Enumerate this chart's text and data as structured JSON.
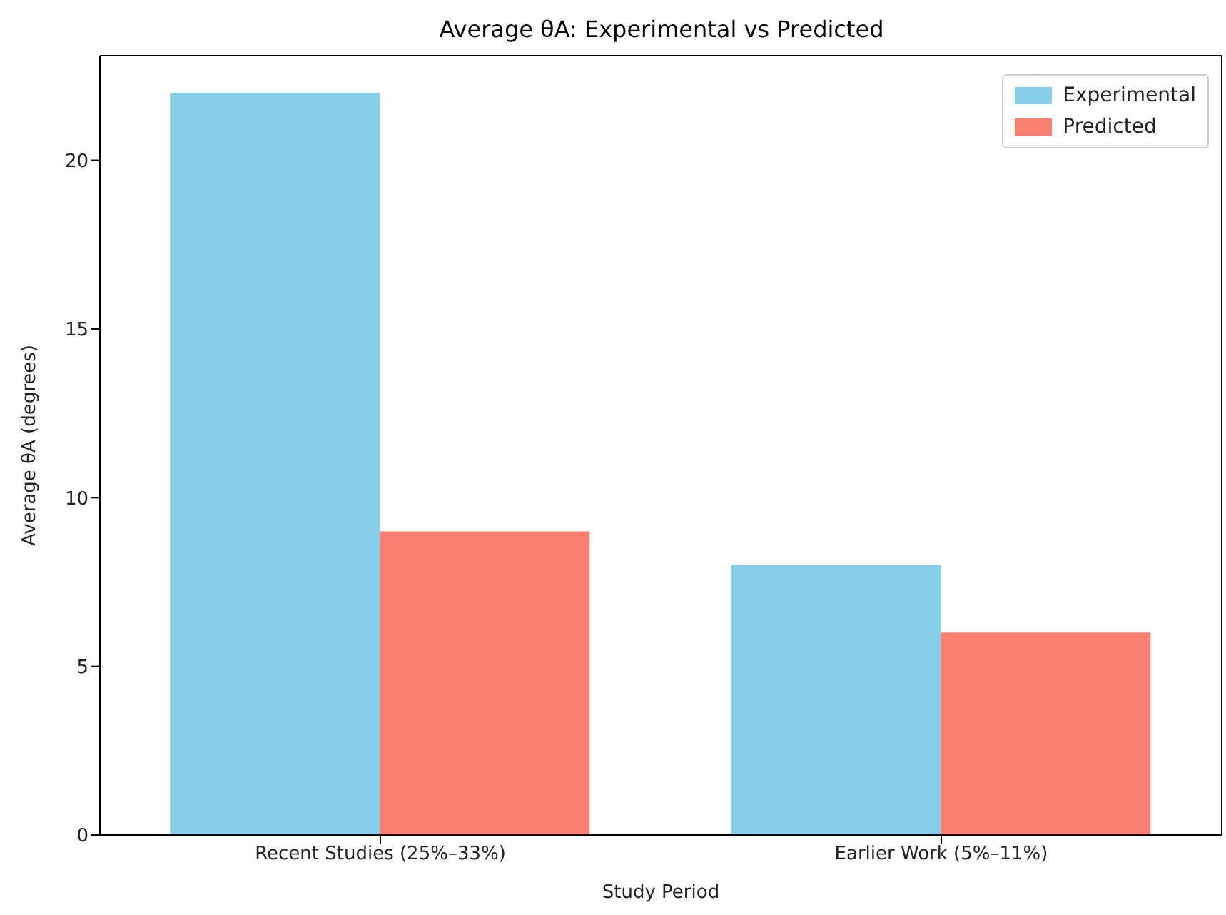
{
  "chart_data": {
    "type": "bar",
    "title": "Average θA: Experimental vs Predicted",
    "xlabel": "Study Period",
    "ylabel": "Average θA (degrees)",
    "categories": [
      "Recent Studies (25%–33%)",
      "Earlier Work (5%–11%)"
    ],
    "series": [
      {
        "name": "Experimental",
        "color": "#87ceeb",
        "values": [
          22,
          8
        ]
      },
      {
        "name": "Predicted",
        "color": "#fa8072",
        "values": [
          9,
          6
        ]
      }
    ],
    "ylim": [
      0,
      23.1
    ],
    "yticks": [
      0,
      5,
      10,
      15,
      20
    ],
    "legend": "top right"
  }
}
